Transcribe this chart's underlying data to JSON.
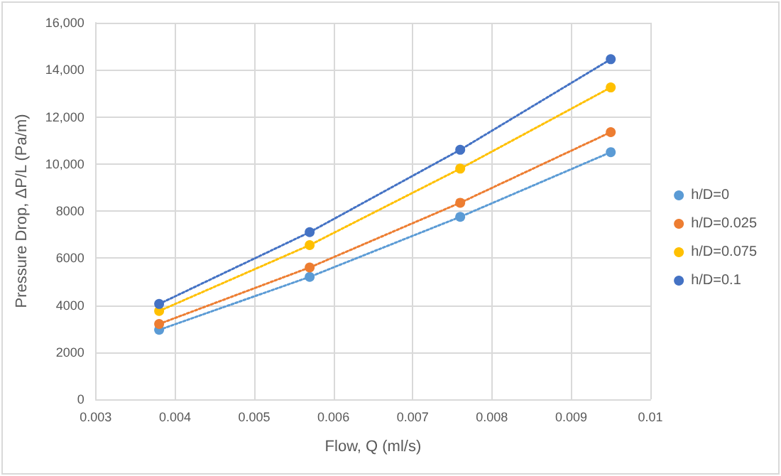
{
  "chart_data": {
    "type": "line",
    "xlabel": "Flow, Q (ml/s)",
    "ylabel": "Pressure Drop, ΔP/L (Pa/m)",
    "x": [
      0.0038,
      0.0057,
      0.0076,
      0.0095
    ],
    "series": [
      {
        "name": "h/D=0",
        "color": "#5b9bd5",
        "values": [
          2950,
          5200,
          7750,
          10500
        ]
      },
      {
        "name": "h/D=0.025",
        "color": "#ed7d31",
        "values": [
          3200,
          5600,
          8350,
          11350
        ]
      },
      {
        "name": "h/D=0.075",
        "color": "#ffc000",
        "values": [
          3750,
          6550,
          9800,
          13250
        ]
      },
      {
        "name": "h/D=0.1",
        "color": "#4472c4",
        "values": [
          4050,
          7100,
          10600,
          14450
        ]
      }
    ],
    "xlim": [
      0.003,
      0.01
    ],
    "xticks": [
      0.003,
      0.004,
      0.005,
      0.006,
      0.007,
      0.008,
      0.009,
      0.01
    ],
    "ylim": [
      0,
      16000
    ],
    "yticks": [
      0,
      2000,
      4000,
      6000,
      8000,
      {
        "value": 10000,
        "label": "10,000"
      },
      {
        "value": 12000,
        "label": "12,000"
      },
      {
        "value": 14000,
        "label": "14,000"
      },
      {
        "value": 16000,
        "label": "16,000"
      }
    ],
    "grid": true,
    "legend": "right",
    "marker": "circle",
    "line_style": "dotted"
  }
}
